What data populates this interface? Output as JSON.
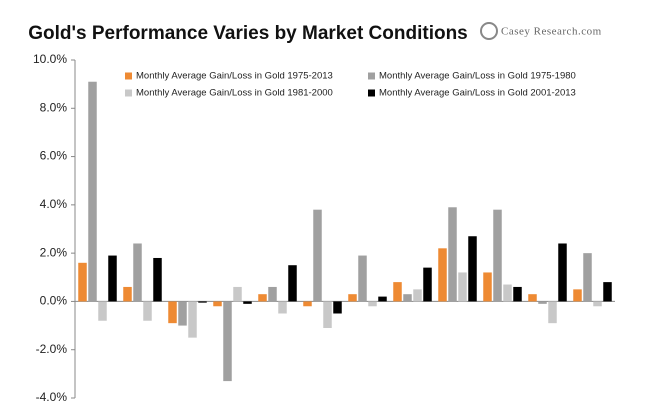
{
  "chart_data": {
    "type": "bar",
    "title": "Gold's Performance Varies by Market Conditions",
    "brand": "Casey Research.com",
    "categories": [
      null,
      null,
      null,
      null,
      null,
      null,
      null,
      null,
      null,
      null,
      null,
      null
    ],
    "series": [
      {
        "name": "Monthly Average Gain/Loss in Gold 1975-2013",
        "color": "#ee8a33",
        "values": [
          1.6,
          0.6,
          -0.9,
          -0.2,
          0.3,
          -0.2,
          0.3,
          0.8,
          2.2,
          1.2,
          0.3,
          0.5
        ]
      },
      {
        "name": "Monthly Average Gain/Loss in Gold 1975-1980",
        "color": "#a0a0a0",
        "values": [
          9.1,
          2.4,
          -1.0,
          -3.3,
          0.6,
          3.8,
          1.9,
          0.3,
          3.9,
          3.8,
          -0.1,
          2.0
        ]
      },
      {
        "name": "Monthly Average Gain/Loss in Gold 1981-2000",
        "color": "#c8c8c8",
        "values": [
          -0.8,
          -0.8,
          -1.5,
          0.6,
          -0.5,
          -1.1,
          -0.2,
          0.5,
          1.2,
          0.7,
          -0.9,
          -0.2
        ]
      },
      {
        "name": "Monthly Average Gain/Loss in Gold 2001-2013",
        "color": "#000000",
        "values": [
          1.9,
          1.8,
          -0.05,
          -0.1,
          1.5,
          -0.5,
          0.2,
          1.4,
          2.7,
          0.6,
          2.4,
          0.8
        ]
      }
    ],
    "ylim": [
      -4,
      10
    ],
    "yticks": [
      {
        "value": -4,
        "label": "-4.0%"
      },
      {
        "value": -2,
        "label": "-2.0%"
      },
      {
        "value": 0,
        "label": "0.0%"
      },
      {
        "value": 2,
        "label": "2.0%"
      },
      {
        "value": 4,
        "label": "4.0%"
      },
      {
        "value": 6,
        "label": "6.0%"
      },
      {
        "value": 8,
        "label": "8.0%"
      },
      {
        "value": 10,
        "label": "10.0%"
      }
    ],
    "grid": false,
    "legend": "top"
  }
}
